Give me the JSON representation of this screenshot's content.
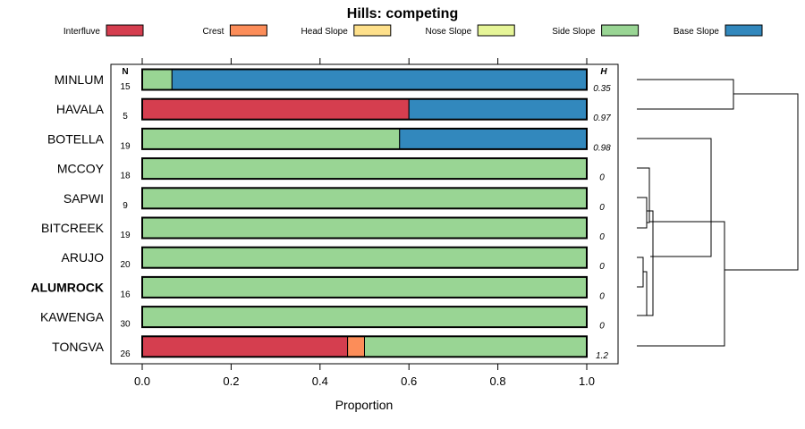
{
  "chart_data": {
    "type": "bar",
    "orientation": "horizontal",
    "stacked": true,
    "title": "Hills: competing",
    "xlabel": "Proportion",
    "ylabel": "",
    "xlim": [
      -0.07,
      1.07
    ],
    "xticks": [
      {
        "value": 0.0,
        "label": "0.0"
      },
      {
        "value": 0.2,
        "label": "0.2"
      },
      {
        "value": 0.4,
        "label": "0.4"
      },
      {
        "value": 0.6,
        "label": "0.6"
      },
      {
        "value": 0.8,
        "label": "0.8"
      },
      {
        "value": 1.0,
        "label": "1.0"
      }
    ],
    "n_header": "N",
    "h_header": "H",
    "legend": [
      {
        "name": "Interfluve",
        "color": "#d53e4f"
      },
      {
        "name": "Crest",
        "color": "#fc8d59"
      },
      {
        "name": "Head Slope",
        "color": "#fee08b"
      },
      {
        "name": "Nose Slope",
        "color": "#e6f598"
      },
      {
        "name": "Side Slope",
        "color": "#99d594"
      },
      {
        "name": "Base Slope",
        "color": "#3288bd"
      }
    ],
    "categories": [
      "MINLUM",
      "HAVALA",
      "BOTELLA",
      "MCCOY",
      "SAPWI",
      "BITCREEK",
      "ARUJO",
      "ALUMROCK",
      "KAWENGA",
      "TONGVA"
    ],
    "highlighted_category": "ALUMROCK",
    "n": [
      "15",
      "5",
      "19",
      "18",
      "9",
      "19",
      "20",
      "16",
      "30",
      "26"
    ],
    "h": [
      "0.35",
      "0.97",
      "0.98",
      "0",
      "0",
      "0",
      "0",
      "0",
      "0",
      "1.2"
    ],
    "series": [
      {
        "name": "Interfluve",
        "values": [
          0,
          0.6,
          0,
          0,
          0,
          0,
          0,
          0,
          0,
          0.462
        ]
      },
      {
        "name": "Crest",
        "values": [
          0,
          0,
          0,
          0,
          0,
          0,
          0,
          0,
          0,
          0.038
        ]
      },
      {
        "name": "Head Slope",
        "values": [
          0,
          0,
          0,
          0,
          0,
          0,
          0,
          0,
          0,
          0
        ]
      },
      {
        "name": "Nose Slope",
        "values": [
          0,
          0,
          0,
          0,
          0,
          0,
          0,
          0,
          0,
          0
        ]
      },
      {
        "name": "Side Slope",
        "values": [
          0.067,
          0,
          0.579,
          1,
          1,
          1,
          1,
          1,
          1,
          0.5
        ]
      },
      {
        "name": "Base Slope",
        "values": [
          0.933,
          0.4,
          0.421,
          0,
          0,
          0,
          0,
          0,
          0,
          0
        ]
      }
    ],
    "dendrogram": true
  }
}
